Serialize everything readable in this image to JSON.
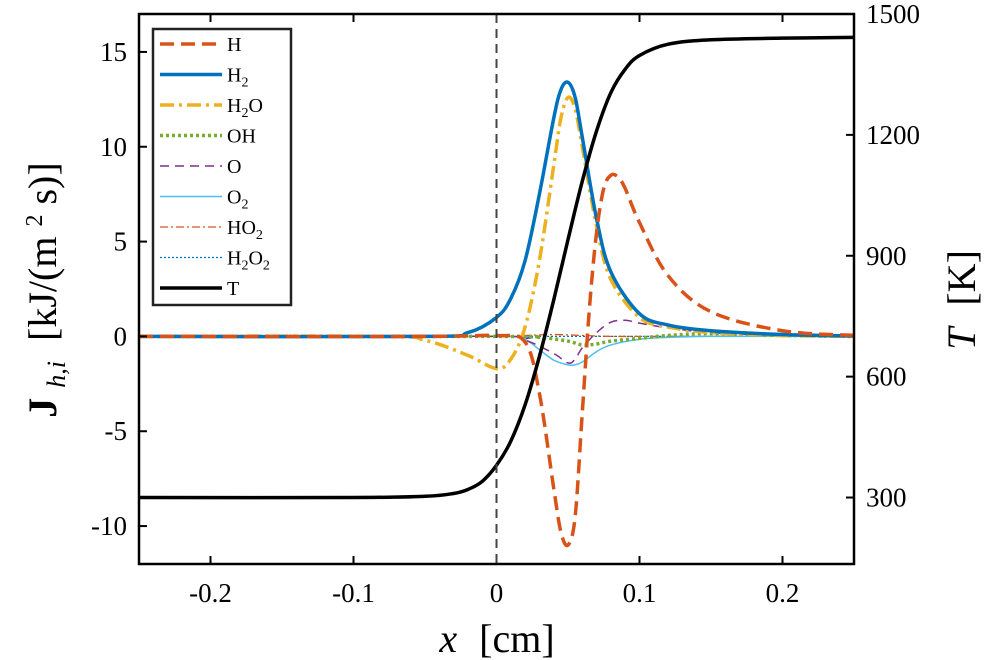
{
  "chart_data": {
    "type": "line",
    "title": "",
    "xlabel": {
      "symbol": "x",
      "unit": "[cm]"
    },
    "ylabel_left": {
      "symbol": "J",
      "subscript": "h,i",
      "unit_text": "[kJ/(m",
      "unit_sup": "2",
      "unit_end": " s)]"
    },
    "ylabel_right": {
      "symbol": "T",
      "unit": "[K]"
    },
    "xlim": [
      -0.25,
      0.25
    ],
    "ylim_left": [
      -12,
      17
    ],
    "ylim_right": [
      135,
      1500
    ],
    "xticks": [
      -0.2,
      -0.1,
      0,
      0.1,
      0.2
    ],
    "xtick_labels": [
      "-0.2",
      "-0.1",
      "0",
      "0.1",
      "0.2"
    ],
    "yticks_left": [
      -10,
      -5,
      0,
      5,
      10,
      15
    ],
    "ytick_labels_left": [
      "-10",
      "-5",
      "0",
      "5",
      "10",
      "15"
    ],
    "yticks_right": [
      300,
      600,
      900,
      1200,
      1500
    ],
    "ytick_labels_right": [
      "300",
      "600",
      "900",
      "1200",
      "1500"
    ],
    "vline_x": 0,
    "legend_position": "top-left",
    "series": [
      {
        "name": "H",
        "label_base": "H",
        "label_sub": "",
        "color": "#d95319",
        "dash": "14,7",
        "width": 3.5,
        "axis": "left",
        "x": [
          -0.25,
          -0.05,
          0,
          0.02,
          0.03,
          0.04,
          0.045,
          0.05,
          0.055,
          0.06,
          0.065,
          0.07,
          0.075,
          0.08,
          0.085,
          0.09,
          0.1,
          0.12,
          0.15,
          0.2,
          0.25
        ],
        "y": [
          0,
          0,
          0.05,
          -0.3,
          -3,
          -8,
          -10.3,
          -11,
          -9.5,
          -4,
          1.5,
          5.5,
          7.8,
          8.5,
          8.4,
          7.8,
          6,
          3.2,
          1.3,
          0.3,
          0.05
        ]
      },
      {
        "name": "H2",
        "label_base": "H",
        "label_sub": "2",
        "color": "#0072bd",
        "dash": "",
        "width": 3.5,
        "axis": "left",
        "x": [
          -0.25,
          -0.05,
          -0.02,
          0,
          0.01,
          0.02,
          0.03,
          0.04,
          0.045,
          0.05,
          0.055,
          0.06,
          0.07,
          0.08,
          0.1,
          0.12,
          0.15,
          0.2,
          0.25
        ],
        "y": [
          0,
          0,
          0.2,
          1,
          2,
          4,
          7.5,
          11.5,
          13,
          13.4,
          12.6,
          10.5,
          6.2,
          3.4,
          1.2,
          0.6,
          0.3,
          0.1,
          0.02
        ]
      },
      {
        "name": "H2O",
        "label_base": "H",
        "label_sub": "2",
        "label_end": "O",
        "color": "#edb120",
        "dash": "14,5,3,5",
        "width": 3.5,
        "axis": "left",
        "x": [
          -0.25,
          -0.08,
          -0.05,
          -0.02,
          0,
          0.01,
          0.02,
          0.03,
          0.04,
          0.045,
          0.05,
          0.055,
          0.06,
          0.07,
          0.08,
          0.1,
          0.12,
          0.15,
          0.2,
          0.25
        ],
        "y": [
          0,
          0,
          -0.2,
          -1,
          -1.7,
          -1.2,
          0.5,
          4,
          9,
          11.5,
          12.6,
          12,
          10,
          5.8,
          3,
          1,
          0.5,
          0.2,
          0.05,
          0
        ]
      },
      {
        "name": "OH",
        "label_base": "OH",
        "label_sub": "",
        "color": "#77ac30",
        "dash": "3,3",
        "width": 3.5,
        "axis": "left",
        "x": [
          -0.25,
          0,
          0.03,
          0.05,
          0.06,
          0.07,
          0.08,
          0.1,
          0.12,
          0.15,
          0.2,
          0.25
        ],
        "y": [
          0,
          0,
          -0.05,
          -0.25,
          -0.45,
          -0.4,
          -0.25,
          -0.1,
          0.05,
          0.15,
          0.05,
          0
        ]
      },
      {
        "name": "O",
        "label_base": "O",
        "label_sub": "",
        "color": "#7e2f8e",
        "dash": "9,6",
        "width": 1.5,
        "axis": "left",
        "x": [
          -0.25,
          0,
          0.02,
          0.04,
          0.05,
          0.055,
          0.06,
          0.07,
          0.08,
          0.09,
          0.1,
          0.12,
          0.15,
          0.2,
          0.25
        ],
        "y": [
          0,
          0,
          -0.2,
          -0.9,
          -1.4,
          -1.2,
          -0.6,
          0.2,
          0.75,
          0.85,
          0.7,
          0.45,
          0.2,
          0.05,
          0
        ]
      },
      {
        "name": "O2",
        "label_base": "O",
        "label_sub": "2",
        "color": "#4dbeee",
        "dash": "",
        "width": 1.5,
        "axis": "left",
        "x": [
          -0.25,
          0,
          0.02,
          0.03,
          0.04,
          0.05,
          0.055,
          0.06,
          0.07,
          0.08,
          0.1,
          0.12,
          0.15,
          0.2,
          0.25
        ],
        "y": [
          0,
          0,
          -0.2,
          -0.7,
          -1.25,
          -1.5,
          -1.5,
          -1.35,
          -0.8,
          -0.45,
          -0.15,
          -0.05,
          0,
          0,
          0
        ]
      },
      {
        "name": "HO2",
        "label_base": "HO",
        "label_sub": "2",
        "color": "#d95319",
        "dash": "8,3,2,3",
        "width": 1.3,
        "axis": "left",
        "x": [
          -0.25,
          0,
          0.02,
          0.04,
          0.06,
          0.08,
          0.1,
          0.25
        ],
        "y": [
          0,
          0,
          0.05,
          0.1,
          0.05,
          0,
          0,
          0
        ]
      },
      {
        "name": "H2O2",
        "label_base": "H",
        "label_sub": "2",
        "label_end": "O",
        "label_sub2": "2",
        "color": "#0072bd",
        "dash": "2,2",
        "width": 1.3,
        "axis": "left",
        "x": [
          -0.25,
          0.25
        ],
        "y": [
          0,
          0
        ]
      },
      {
        "name": "T",
        "label_base": "T",
        "label_sub": "",
        "color": "#000000",
        "dash": "",
        "width": 3.5,
        "axis": "right",
        "x": [
          -0.25,
          -0.1,
          -0.05,
          -0.03,
          -0.02,
          -0.01,
          0,
          0.01,
          0.02,
          0.03,
          0.04,
          0.05,
          0.06,
          0.07,
          0.08,
          0.09,
          0.1,
          0.12,
          0.15,
          0.2,
          0.25
        ],
        "y": [
          300,
          300,
          303,
          310,
          320,
          340,
          380,
          440,
          530,
          650,
          790,
          940,
          1085,
          1210,
          1305,
          1363,
          1397,
          1425,
          1436,
          1440,
          1442
        ]
      }
    ]
  }
}
